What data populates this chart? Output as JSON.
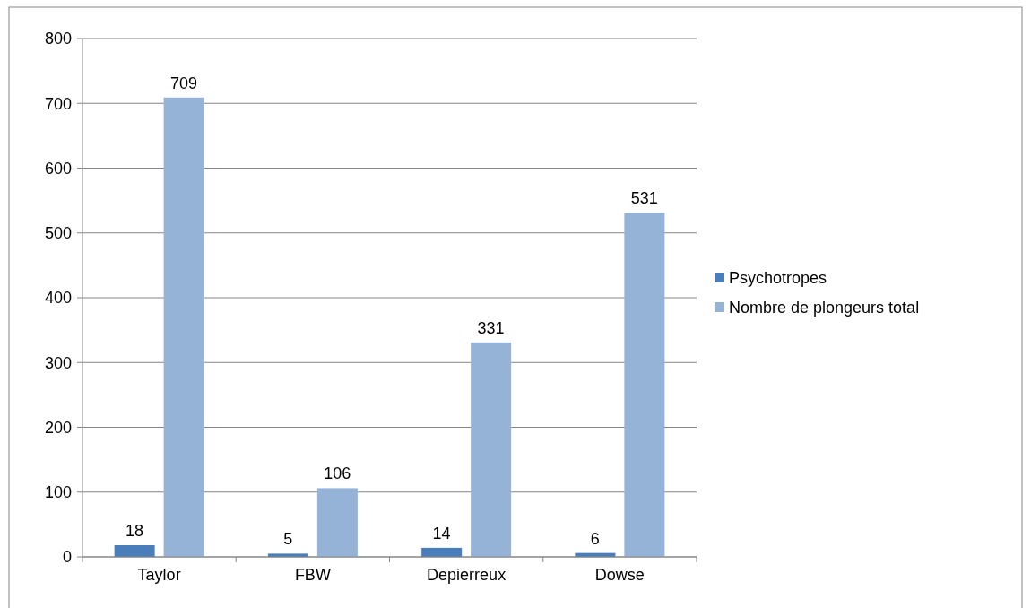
{
  "chart_data": {
    "type": "bar",
    "categories": [
      "Taylor",
      "FBW",
      "Depierreux",
      "Dowse"
    ],
    "series": [
      {
        "name": "Psychotropes",
        "color": "#4a7ebb",
        "values": [
          18,
          5,
          14,
          6
        ]
      },
      {
        "name": "Nombre de plongeurs total",
        "color": "#95b3d7",
        "values": [
          709,
          106,
          331,
          531
        ]
      }
    ],
    "ylim": [
      0,
      800
    ],
    "yticks": [
      0,
      100,
      200,
      300,
      400,
      500,
      600,
      700,
      800
    ],
    "grid": "y",
    "legend": "right",
    "data_labels": true
  }
}
